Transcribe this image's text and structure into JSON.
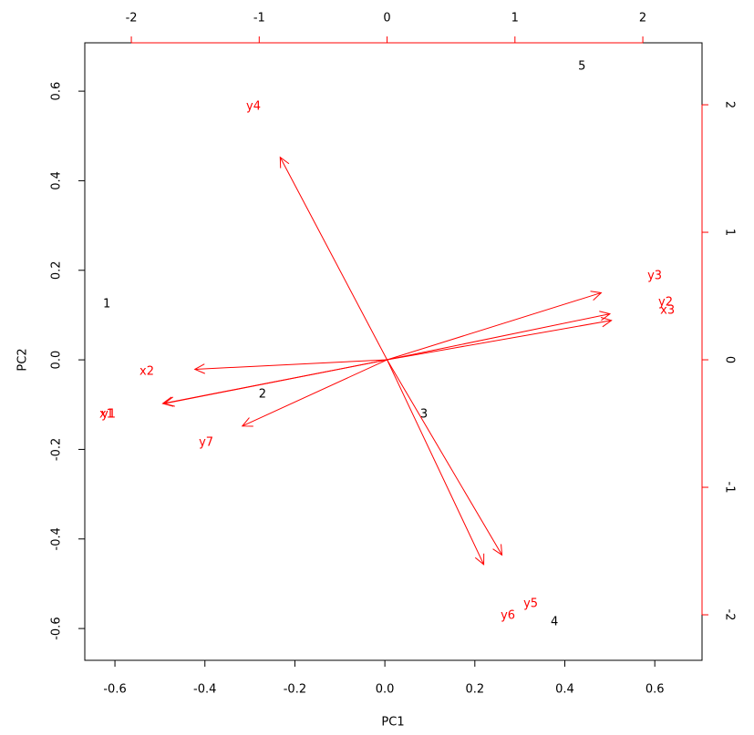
{
  "chart_data": {
    "type": "biplot",
    "x_label": "PC1",
    "y_label": "PC2",
    "xlim": [
      -0.667,
      0.705
    ],
    "ylim": [
      -0.671,
      0.708
    ],
    "xticks": [
      -0.6,
      -0.4,
      -0.2,
      {
        "value": 0,
        "label": "0.0"
      },
      0.2,
      0.4,
      0.6
    ],
    "yticks": [
      -0.6,
      -0.4,
      -0.2,
      {
        "value": 0,
        "label": "0.0"
      },
      0.2,
      0.4,
      0.6
    ],
    "x2lim": [
      -2.364,
      2.463
    ],
    "y2lim": [
      -2.357,
      2.486
    ],
    "x2ticks": [
      -2,
      -1,
      0,
      1,
      2
    ],
    "y2ticks": [
      -2,
      -1,
      0,
      1,
      2
    ],
    "observations": {
      "color": "#000000",
      "labels": [
        "1",
        "2",
        "3",
        "4",
        "5"
      ],
      "x": [
        -0.618,
        -0.272,
        0.087,
        0.377,
        0.438
      ],
      "y": [
        0.124,
        -0.077,
        -0.122,
        -0.586,
        0.655
      ]
    },
    "variables": {
      "color": "#ff0000",
      "labels": [
        "x1",
        "x2",
        "x3",
        "y1",
        "y2",
        "y3",
        "y4",
        "y5",
        "y6",
        "y7"
      ],
      "x": [
        -2.193,
        -1.879,
        2.193,
        -2.178,
        2.178,
        2.093,
        -1.045,
        1.123,
        0.945,
        -1.415
      ],
      "y": [
        -0.429,
        -0.093,
        0.386,
        -0.429,
        0.45,
        0.657,
        1.986,
        -1.914,
        -2.007,
        -0.65
      ]
    }
  }
}
